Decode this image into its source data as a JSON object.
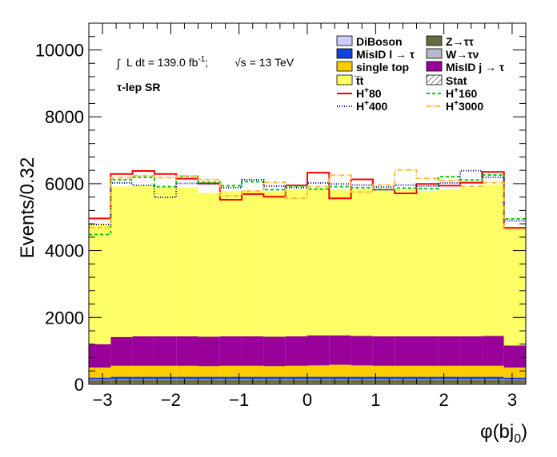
{
  "chart_data": {
    "type": "bar",
    "stacked": true,
    "ylabel": "Events/0.32",
    "xlabel": "φ(bj",
    "xlabel_sub": "0",
    "xlabel_close": ")",
    "xlim": [
      -3.2,
      3.2
    ],
    "ylim": [
      0,
      10800
    ],
    "xticks": [
      -3,
      -2,
      -1,
      0,
      1,
      2,
      3
    ],
    "xtick_labels": [
      "−3",
      "−2",
      "−1",
      "0",
      "1",
      "2",
      "3"
    ],
    "yticks": [
      0,
      2000,
      4000,
      6000,
      8000,
      10000
    ],
    "ytick_labels": [
      "0",
      "2000",
      "4000",
      "6000",
      "8000",
      "10000"
    ],
    "bin_edges": [
      -3.2,
      -2.88,
      -2.56,
      -2.24,
      -1.92,
      -1.6,
      -1.28,
      -0.96,
      -0.64,
      -0.32,
      0.0,
      0.32,
      0.64,
      0.96,
      1.28,
      1.6,
      1.92,
      2.24,
      2.56,
      2.88,
      3.2
    ],
    "stack_order": [
      "DiBoson",
      "Z→ττ",
      "W→τν",
      "MisID l → τ",
      "single top",
      "MisID j → τ",
      "t̅t"
    ],
    "series": [
      {
        "name": "DiBoson",
        "color": "#ccccff",
        "values": [
          20,
          25,
          25,
          25,
          25,
          25,
          25,
          25,
          25,
          25,
          25,
          25,
          25,
          25,
          25,
          25,
          25,
          25,
          25,
          20
        ]
      },
      {
        "name": "Z→ττ",
        "color": "#6b6b43",
        "values": [
          100,
          110,
          110,
          110,
          110,
          110,
          110,
          110,
          110,
          110,
          110,
          110,
          110,
          110,
          110,
          110,
          110,
          110,
          110,
          100
        ]
      },
      {
        "name": "W→τν",
        "color": "#b8b8cc",
        "values": [
          20,
          20,
          20,
          20,
          20,
          20,
          20,
          20,
          20,
          20,
          20,
          20,
          20,
          20,
          20,
          20,
          20,
          20,
          20,
          20
        ]
      },
      {
        "name": "MisID l → τ",
        "color": "#1144dd",
        "values": [
          60,
          70,
          70,
          70,
          70,
          70,
          70,
          70,
          70,
          70,
          70,
          70,
          70,
          70,
          70,
          70,
          70,
          70,
          70,
          60
        ]
      },
      {
        "name": "single top",
        "color": "#ffcc00",
        "values": [
          300,
          330,
          330,
          330,
          330,
          320,
          330,
          330,
          320,
          330,
          340,
          360,
          340,
          330,
          330,
          330,
          330,
          330,
          330,
          300
        ]
      },
      {
        "name": "MisID j → τ",
        "color": "#990099",
        "values": [
          700,
          860,
          880,
          880,
          880,
          880,
          880,
          880,
          880,
          880,
          900,
          880,
          880,
          880,
          880,
          880,
          880,
          880,
          890,
          660
        ]
      },
      {
        "name": "t̅t",
        "color": "#ffff66",
        "values": [
          3600,
          4500,
          4500,
          4450,
          4450,
          4300,
          4350,
          4350,
          4350,
          4400,
          4400,
          4350,
          4400,
          4350,
          4400,
          4350,
          4400,
          4450,
          4530,
          3550
        ]
      }
    ],
    "signals": [
      {
        "name": "H⁺80",
        "label_main": "H",
        "label_sup": "+",
        "label_num": "80",
        "color": "#ff0000",
        "dash": "",
        "values": [
          4960,
          6290,
          6380,
          6290,
          6150,
          6010,
          5520,
          5690,
          5610,
          5950,
          6330,
          5560,
          6130,
          5820,
          5710,
          5990,
          5940,
          6030,
          6350,
          4680
        ]
      },
      {
        "name": "H⁺160",
        "label_main": "H",
        "label_sup": "+",
        "label_num": "160",
        "color": "#00cc00",
        "dash": "4,3",
        "values": [
          4480,
          6120,
          6190,
          5910,
          6220,
          6040,
          5940,
          6060,
          5820,
          5930,
          5840,
          5910,
          5880,
          5820,
          5870,
          5850,
          6210,
          6110,
          6260,
          4950
        ]
      },
      {
        "name": "H⁺400",
        "label_main": "H",
        "label_sup": "+",
        "label_num": "400",
        "color": "#000099",
        "dash": "1,2",
        "values": [
          4780,
          6020,
          5950,
          5590,
          6010,
          5990,
          5880,
          6120,
          5930,
          5880,
          6020,
          5990,
          5960,
          5900,
          5960,
          5930,
          6020,
          6390,
          6190,
          4890
        ]
      },
      {
        "name": "H⁺3000",
        "label_main": "H",
        "label_sup": "+",
        "label_num": "3000",
        "color": "#ffbb33",
        "dash": "6,2,1,2",
        "values": [
          4690,
          6180,
          6240,
          6180,
          6230,
          6120,
          5640,
          5780,
          6040,
          5560,
          5910,
          6250,
          5750,
          5960,
          6410,
          6160,
          6090,
          5920,
          6030,
          4640
        ]
      }
    ],
    "legend": [
      {
        "key": "diboson",
        "label": "DiBoson",
        "kind": "box",
        "color": "#ccccff"
      },
      {
        "key": "ztautau",
        "label": "Z→ττ",
        "kind": "box",
        "color": "#6b6b43"
      },
      {
        "key": "misidl",
        "label": "MisID l → τ",
        "kind": "box",
        "color": "#1144dd"
      },
      {
        "key": "wtaunu",
        "label": "W→τν",
        "kind": "box",
        "color": "#b8b8cc"
      },
      {
        "key": "singletop",
        "label": "single top",
        "kind": "box",
        "color": "#ffcc00"
      },
      {
        "key": "misidj",
        "label": "MisID j → τ",
        "kind": "box",
        "color": "#990099"
      },
      {
        "key": "ttbar",
        "label": "t̅t",
        "kind": "box",
        "color": "#ffff66"
      },
      {
        "key": "stat",
        "label": "Stat",
        "kind": "hatch",
        "color": "#000000"
      },
      {
        "key": "h80",
        "label_main": "H",
        "label_sup": "+",
        "label_num": "80",
        "kind": "line",
        "color": "#ff0000",
        "dash": ""
      },
      {
        "key": "h160",
        "label_main": "H",
        "label_sup": "+",
        "label_num": "160",
        "kind": "line",
        "color": "#00cc00",
        "dash": "4,3"
      },
      {
        "key": "h400",
        "label_main": "H",
        "label_sup": "+",
        "label_num": "400",
        "kind": "line",
        "color": "#000099",
        "dash": "1,2"
      },
      {
        "key": "h3000",
        "label_main": "H",
        "label_sup": "+",
        "label_num": "3000",
        "kind": "line",
        "color": "#ffbb33",
        "dash": "6,2,1,2"
      }
    ],
    "annotations": {
      "lumi_integral": "∫",
      "lumi_text": "L dt = 139.0 fb",
      "lumi_sup": "-1",
      "lumi_sep": ";",
      "sqrt_s": "√s",
      "energy": "= 13 TeV",
      "region": "τ-lep SR"
    }
  }
}
